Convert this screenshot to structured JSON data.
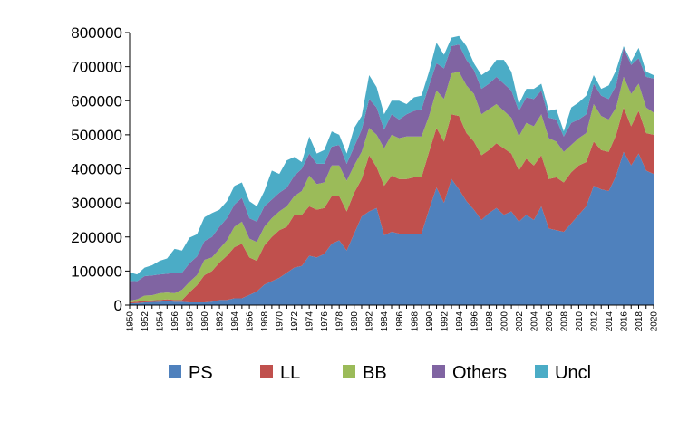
{
  "chart_data": {
    "type": "area",
    "stacked": true,
    "title": "",
    "xlabel": "",
    "ylabel": "",
    "ylim": [
      0,
      800000
    ],
    "yticks": [
      "0",
      "100000",
      "200000",
      "300000",
      "400000",
      "500000",
      "600000",
      "700000",
      "800000"
    ],
    "xrange": [
      1950,
      2020
    ],
    "xtick_step": 2,
    "grid": false,
    "legend": "bottom",
    "colors": [
      "#4f81bd",
      "#c0504d",
      "#9bbb59",
      "#8064a2",
      "#4bacc6"
    ],
    "x": [
      1950,
      1951,
      1952,
      1953,
      1954,
      1955,
      1956,
      1957,
      1958,
      1959,
      1960,
      1961,
      1962,
      1963,
      1964,
      1965,
      1966,
      1967,
      1968,
      1969,
      1970,
      1971,
      1972,
      1973,
      1974,
      1975,
      1976,
      1977,
      1978,
      1979,
      1980,
      1981,
      1982,
      1983,
      1984,
      1985,
      1986,
      1987,
      1988,
      1989,
      1990,
      1991,
      1992,
      1993,
      1994,
      1995,
      1996,
      1997,
      1998,
      1999,
      2000,
      2001,
      2002,
      2003,
      2004,
      2005,
      2006,
      2007,
      2008,
      2009,
      2010,
      2011,
      2012,
      2013,
      2014,
      2015,
      2016,
      2017,
      2018,
      2019,
      2020
    ],
    "series": [
      {
        "name": "PS",
        "values": [
          5000,
          6000,
          8000,
          9000,
          10000,
          12000,
          10000,
          10000,
          8000,
          8000,
          8000,
          10000,
          15000,
          15000,
          20000,
          20000,
          30000,
          40000,
          60000,
          70000,
          80000,
          95000,
          110000,
          115000,
          145000,
          140000,
          150000,
          180000,
          190000,
          160000,
          210000,
          260000,
          275000,
          285000,
          205000,
          215000,
          210000,
          210000,
          210000,
          210000,
          280000,
          345000,
          300000,
          370000,
          340000,
          305000,
          280000,
          250000,
          270000,
          285000,
          265000,
          275000,
          245000,
          265000,
          250000,
          290000,
          225000,
          220000,
          215000,
          240000,
          265000,
          290000,
          350000,
          340000,
          335000,
          380000,
          450000,
          410000,
          445000,
          395000,
          385000
        ]
      },
      {
        "name": "LL",
        "values": [
          3000,
          4000,
          5000,
          5000,
          5000,
          5000,
          5000,
          5000,
          30000,
          50000,
          80000,
          90000,
          110000,
          130000,
          150000,
          160000,
          110000,
          90000,
          115000,
          130000,
          140000,
          135000,
          155000,
          150000,
          145000,
          140000,
          135000,
          140000,
          130000,
          115000,
          120000,
          110000,
          165000,
          120000,
          145000,
          165000,
          160000,
          160000,
          165000,
          165000,
          170000,
          175000,
          180000,
          190000,
          215000,
          200000,
          200000,
          190000,
          185000,
          190000,
          195000,
          170000,
          150000,
          165000,
          160000,
          150000,
          145000,
          155000,
          145000,
          150000,
          145000,
          130000,
          130000,
          115000,
          115000,
          120000,
          130000,
          115000,
          125000,
          110000,
          115000
        ]
      },
      {
        "name": "BB",
        "values": [
          5000,
          7000,
          15000,
          15000,
          20000,
          20000,
          20000,
          30000,
          30000,
          30000,
          45000,
          40000,
          40000,
          45000,
          60000,
          65000,
          55000,
          55000,
          55000,
          55000,
          55000,
          60000,
          55000,
          70000,
          90000,
          75000,
          75000,
          90000,
          90000,
          90000,
          80000,
          80000,
          80000,
          95000,
          110000,
          120000,
          120000,
          125000,
          120000,
          120000,
          105000,
          110000,
          125000,
          120000,
          130000,
          140000,
          140000,
          120000,
          120000,
          115000,
          110000,
          105000,
          100000,
          105000,
          115000,
          120000,
          120000,
          105000,
          90000,
          80000,
          80000,
          85000,
          110000,
          100000,
          95000,
          80000,
          90000,
          95000,
          80000,
          75000,
          65000
        ]
      },
      {
        "name": "Others",
        "values": [
          58000,
          53000,
          57000,
          58000,
          55000,
          55000,
          60000,
          50000,
          55000,
          55000,
          55000,
          60000,
          65000,
          65000,
          65000,
          70000,
          60000,
          60000,
          60000,
          55000,
          55000,
          55000,
          60000,
          65000,
          65000,
          60000,
          55000,
          55000,
          60000,
          50000,
          55000,
          65000,
          85000,
          80000,
          55000,
          60000,
          55000,
          65000,
          75000,
          80000,
          90000,
          80000,
          90000,
          80000,
          80000,
          75000,
          70000,
          75000,
          75000,
          80000,
          80000,
          80000,
          75000,
          75000,
          80000,
          70000,
          60000,
          65000,
          45000,
          65000,
          55000,
          55000,
          60000,
          60000,
          60000,
          65000,
          85000,
          85000,
          75000,
          90000,
          100000
        ]
      },
      {
        "name": "Uncl",
        "values": [
          25000,
          20000,
          25000,
          30000,
          40000,
          45000,
          70000,
          65000,
          75000,
          65000,
          70000,
          70000,
          50000,
          50000,
          55000,
          45000,
          50000,
          45000,
          45000,
          85000,
          55000,
          80000,
          55000,
          20000,
          50000,
          30000,
          40000,
          45000,
          30000,
          30000,
          55000,
          40000,
          70000,
          60000,
          45000,
          40000,
          55000,
          30000,
          40000,
          40000,
          40000,
          60000,
          40000,
          25000,
          25000,
          40000,
          20000,
          40000,
          40000,
          50000,
          70000,
          55000,
          20000,
          25000,
          30000,
          20000,
          20000,
          30000,
          15000,
          45000,
          50000,
          55000,
          25000,
          20000,
          40000,
          45000,
          5000,
          10000,
          30000,
          15000,
          10000
        ]
      }
    ]
  }
}
